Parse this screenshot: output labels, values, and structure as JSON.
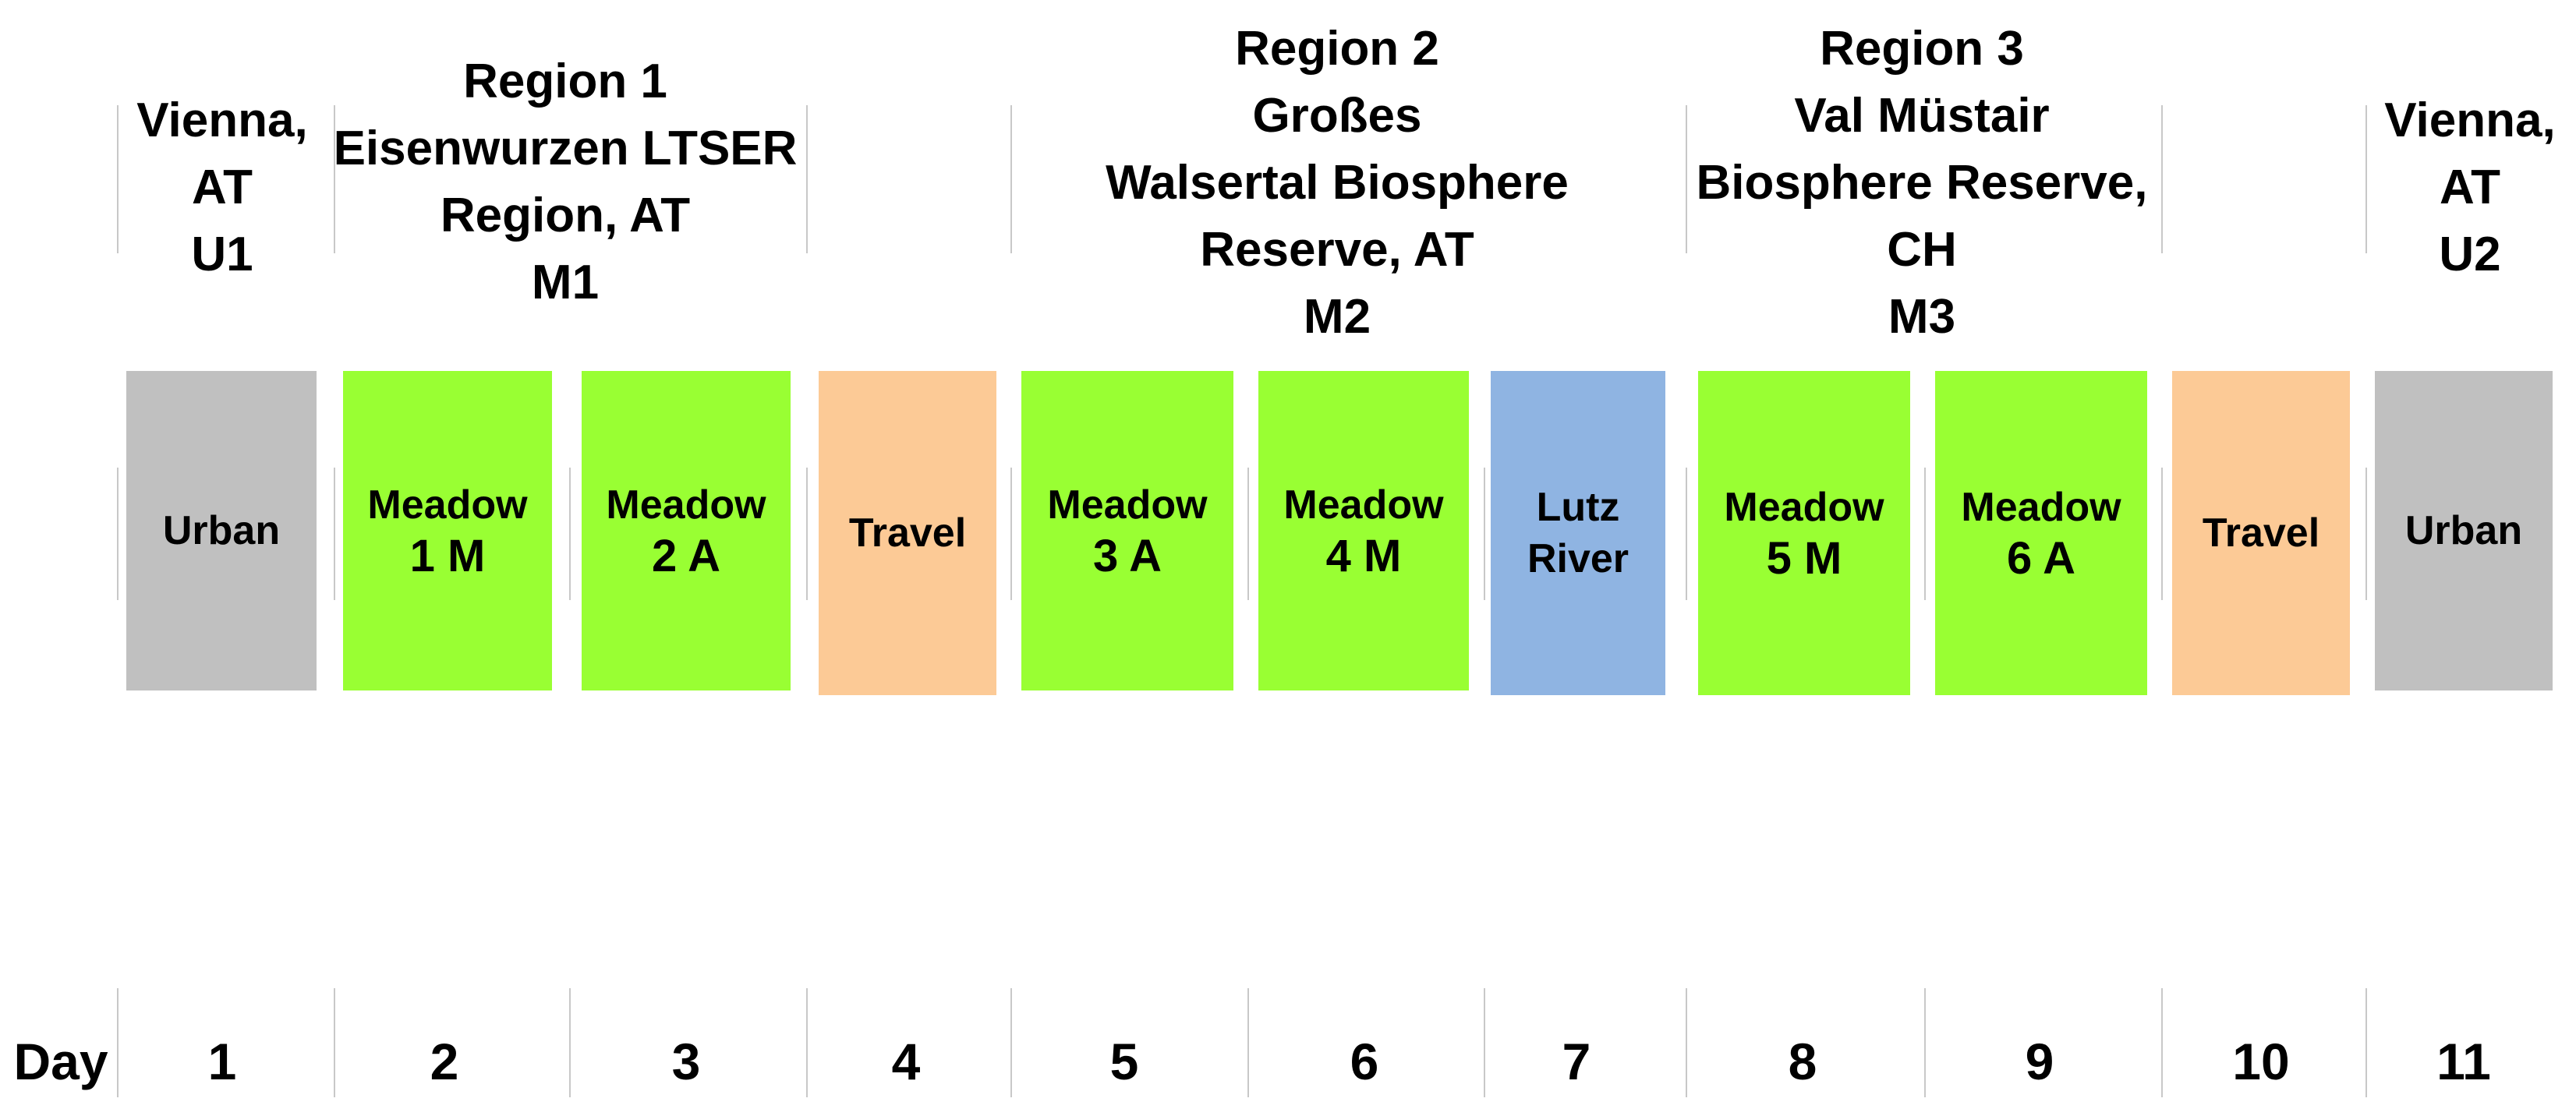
{
  "colors": {
    "urban": "#c0c0c0",
    "meadow": "#99ff33",
    "travel": "#fcca96",
    "river": "#8fb4e2"
  },
  "regions": [
    {
      "label": "Vienna,\nAT\nU1"
    },
    {
      "label": "Region 1\nEisenwurzen LTSER\nRegion, AT\nM1"
    },
    {
      "label": "Region 2\nGroßes\nWalsertal Biosphere\nReserve, AT\nM2"
    },
    {
      "label": "Region 3\nVal Müstair\nBiosphere Reserve,\nCH\nM3"
    },
    {
      "label": "Vienna,\nAT\nU2"
    }
  ],
  "sites": [
    {
      "line1": "Urban",
      "line2": "",
      "type": "urban"
    },
    {
      "line1": "Meadow",
      "line2": "1 M",
      "type": "meadow"
    },
    {
      "line1": "Meadow",
      "line2": "2 A",
      "type": "meadow"
    },
    {
      "line1": "Travel",
      "line2": "",
      "type": "travel"
    },
    {
      "line1": "Meadow",
      "line2": "3 A",
      "type": "meadow"
    },
    {
      "line1": "Meadow",
      "line2": "4 M",
      "type": "meadow"
    },
    {
      "line1": "Lutz\nRiver",
      "line2": "",
      "type": "river"
    },
    {
      "line1": "Meadow",
      "line2": "5 M",
      "type": "meadow"
    },
    {
      "line1": "Meadow",
      "line2": "6 A",
      "type": "meadow"
    },
    {
      "line1": "Travel",
      "line2": "",
      "type": "travel"
    },
    {
      "line1": "Urban",
      "line2": "",
      "type": "urban"
    }
  ],
  "day_label": "Day",
  "days": [
    "1",
    "2",
    "3",
    "4",
    "5",
    "6",
    "7",
    "8",
    "9",
    "10",
    "11"
  ]
}
